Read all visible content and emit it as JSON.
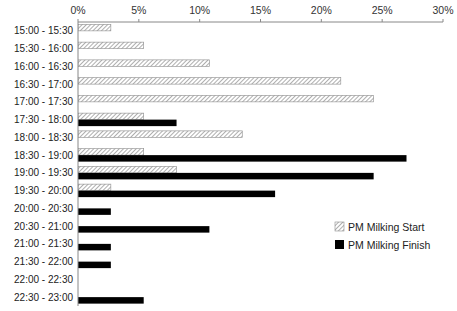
{
  "chart_data": {
    "type": "bar",
    "orientation": "horizontal",
    "categories": [
      "15:00 - 15:30",
      "15:30 - 16:00",
      "16:00 - 16:30",
      "16:30 - 17:00",
      "17:00 - 17:30",
      "17:30 - 18:00",
      "18:00 - 18:30",
      "18:30 - 19:00",
      "19:00 - 19:30",
      "19:30 - 20:00",
      "20:00 - 20:30",
      "20:30 - 21:00",
      "21:00 - 21:30",
      "21:30 - 22:00",
      "22:00 - 22:30",
      "22:30 - 23:00"
    ],
    "series": [
      {
        "name": "PM Milking Start",
        "color": "#8c8c8c",
        "values": [
          2.7,
          5.4,
          10.8,
          21.6,
          24.3,
          5.4,
          13.5,
          5.4,
          8.1,
          2.7,
          0,
          0,
          0,
          0,
          0,
          0
        ]
      },
      {
        "name": "PM Milking Finish",
        "color": "#000000",
        "values": [
          0,
          0,
          0,
          0,
          0,
          8.1,
          0,
          27.0,
          24.3,
          16.2,
          2.7,
          10.8,
          2.7,
          2.7,
          0,
          5.4
        ]
      }
    ],
    "xlim": [
      0,
      30
    ],
    "xticks": [
      {
        "value": 0,
        "label": "0%"
      },
      {
        "value": 5,
        "label": "5%"
      },
      {
        "value": 10,
        "label": "10%"
      },
      {
        "value": 15,
        "label": "15%"
      },
      {
        "value": 20,
        "label": "20%"
      },
      {
        "value": 25,
        "label": "25%"
      },
      {
        "value": 30,
        "label": "30%"
      }
    ],
    "grid": false,
    "legend": "lower right"
  }
}
